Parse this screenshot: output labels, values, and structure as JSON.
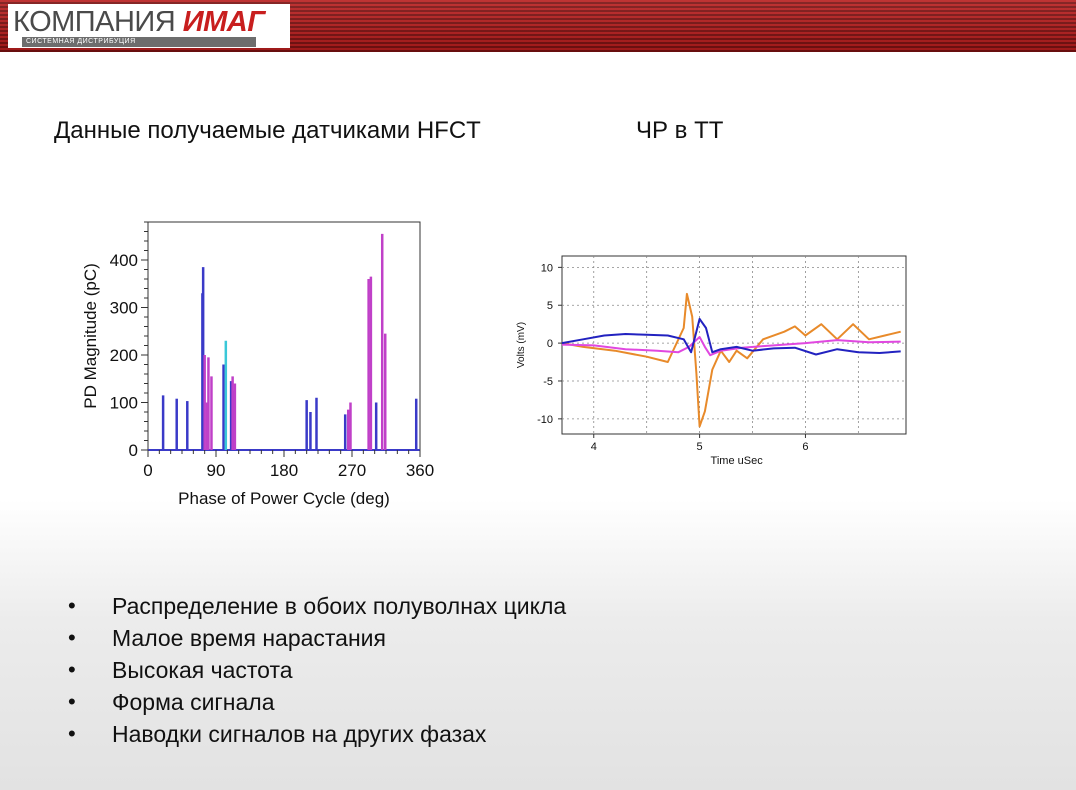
{
  "logo": {
    "word1": "КОМПАНИЯ",
    "word2": "ИМАГ",
    "subtitle": "СИСТЕМНАЯ ДИСТРИБУЦИЯ"
  },
  "headings": {
    "left": "Данные получаемые датчиками HFCT",
    "right": "ЧР в ТТ"
  },
  "bullets": [
    "Распределение в обоих полуволнах цикла",
    "Малое время нарастания",
    "Высокая частота",
    "Форма сигнала",
    "Наводки сигналов на других фазах"
  ],
  "chart_data": [
    {
      "type": "bar",
      "xlabel": "Phase of Power Cycle (deg)",
      "ylabel": "PD Magnitude (pC)",
      "xlim": [
        0,
        360
      ],
      "ylim": [
        0,
        480
      ],
      "xticks": [
        0,
        90,
        180,
        270,
        360
      ],
      "yticks": [
        0,
        100,
        200,
        300,
        400
      ],
      "colors": {
        "blue": "#3a3ac8",
        "magenta": "#c040c8",
        "cyan": "#3ac8d8"
      },
      "series": [
        {
          "color": "blue",
          "x": [
            20,
            38,
            52,
            72,
            73,
            100,
            110,
            113,
            210,
            215,
            223,
            261,
            302,
            355
          ],
          "y": [
            115,
            108,
            103,
            330,
            385,
            180,
            145,
            125,
            105,
            80,
            110,
            75,
            100,
            108
          ]
        },
        {
          "color": "magenta",
          "x": [
            75,
            78,
            80,
            84,
            112,
            115,
            265,
            268,
            292,
            295,
            310,
            314
          ],
          "y": [
            200,
            100,
            195,
            155,
            155,
            140,
            85,
            100,
            360,
            365,
            455,
            245
          ]
        },
        {
          "color": "cyan",
          "x": [
            103
          ],
          "y": [
            230
          ]
        }
      ]
    },
    {
      "type": "line",
      "xlabel": "Time uSec",
      "ylabel": "Volts (mV)",
      "xlim": [
        3.7,
        6.95
      ],
      "ylim": [
        -12,
        11.5
      ],
      "xticks": [
        4,
        5,
        6
      ],
      "yticks": [
        10,
        5,
        0,
        -5,
        -10
      ],
      "grid": true,
      "series": [
        {
          "color": "#e88a2a",
          "x": [
            3.7,
            3.9,
            4.2,
            4.5,
            4.7,
            4.85,
            4.88,
            4.93,
            4.97,
            5.0,
            5.05,
            5.12,
            5.2,
            5.28,
            5.35,
            5.45,
            5.6,
            5.8,
            5.9,
            6.0,
            6.15,
            6.3,
            6.45,
            6.6,
            6.75,
            6.9
          ],
          "y": [
            0.0,
            -0.5,
            -1.0,
            -1.8,
            -2.5,
            2.0,
            6.5,
            3.5,
            -4.0,
            -11.0,
            -9.0,
            -3.5,
            -1.0,
            -2.5,
            -1.0,
            -2.0,
            0.5,
            1.5,
            2.2,
            1.0,
            2.5,
            0.5,
            2.5,
            0.5,
            1.0,
            1.5
          ]
        },
        {
          "color": "#e048e0",
          "x": [
            3.7,
            4.0,
            4.3,
            4.6,
            4.8,
            4.9,
            5.0,
            5.05,
            5.1,
            5.2,
            5.4,
            5.6,
            5.8,
            6.0,
            6.3,
            6.6,
            6.9
          ],
          "y": [
            -0.2,
            -0.3,
            -0.8,
            -1.0,
            -1.2,
            -0.5,
            0.8,
            -0.5,
            -1.6,
            -1.0,
            -0.6,
            -0.4,
            -0.2,
            0.0,
            0.4,
            0.1,
            0.2
          ]
        },
        {
          "color": "#2222c0",
          "x": [
            3.7,
            3.9,
            4.1,
            4.3,
            4.5,
            4.7,
            4.85,
            4.92,
            4.96,
            5.0,
            5.06,
            5.12,
            5.2,
            5.35,
            5.5,
            5.7,
            5.9,
            6.1,
            6.3,
            6.5,
            6.7,
            6.9
          ],
          "y": [
            0.0,
            0.5,
            1.0,
            1.2,
            1.1,
            1.0,
            0.5,
            -1.2,
            1.0,
            3.2,
            2.0,
            -1.2,
            -0.8,
            -0.5,
            -1.0,
            -0.7,
            -0.6,
            -1.5,
            -0.8,
            -1.2,
            -1.3,
            -1.1
          ]
        }
      ]
    }
  ]
}
